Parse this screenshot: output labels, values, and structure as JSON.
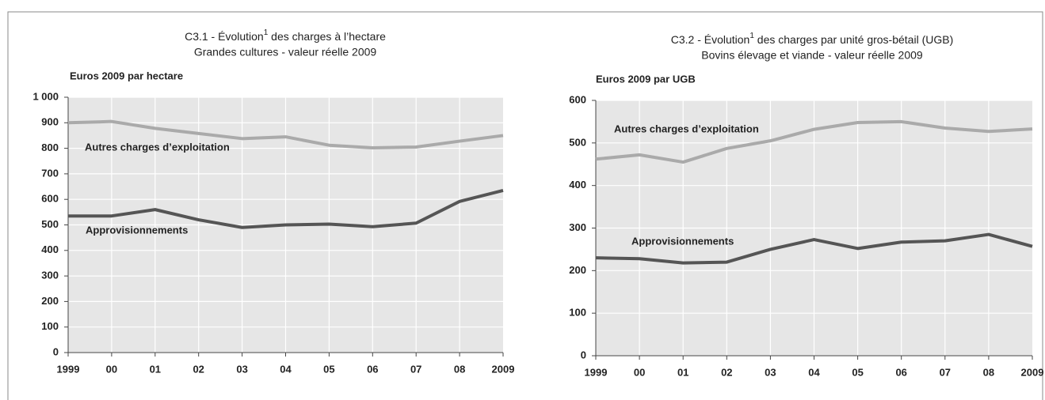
{
  "chart_data": [
    {
      "type": "line",
      "title": {
        "before": "C3.1 -  Évolution",
        "sup": "1",
        "after": " des charges à l’hectare"
      },
      "subtitle": "Grandes cultures - valeur réelle 2009",
      "ylabel": "Euros 2009 par hectare",
      "categories": [
        "1999",
        "00",
        "01",
        "02",
        "03",
        "04",
        "05",
        "06",
        "07",
        "08",
        "2009"
      ],
      "series": [
        {
          "name": "Autres charges d’exploitation",
          "color": "#aaaaaa",
          "values": [
            900,
            905,
            878,
            858,
            838,
            845,
            812,
            802,
            805,
            828,
            850
          ]
        },
        {
          "name": "Approvisionnements",
          "color": "#555555",
          "values": [
            535,
            535,
            560,
            520,
            490,
            500,
            503,
            493,
            507,
            592,
            635
          ]
        }
      ],
      "ylim": [
        0,
        1000
      ],
      "yticks": [
        0,
        100,
        200,
        300,
        400,
        500,
        600,
        700,
        800,
        900,
        {
          "value": 1000,
          "label": "1 000"
        }
      ],
      "grid": true
    },
    {
      "type": "line",
      "title": {
        "before": "C3.2 -  Évolution",
        "sup": "1",
        "after": " des charges par unité gros-bétail (UGB)"
      },
      "subtitle": "Bovins élevage et viande - valeur réelle 2009",
      "ylabel": "Euros 2009 par UGB",
      "categories": [
        "1999",
        "00",
        "01",
        "02",
        "03",
        "04",
        "05",
        "06",
        "07",
        "08",
        "2009"
      ],
      "series": [
        {
          "name": "Autres charges d’exploitation",
          "color": "#aaaaaa",
          "values": [
            462,
            472,
            455,
            487,
            505,
            532,
            548,
            550,
            535,
            527,
            533
          ]
        },
        {
          "name": "Approvisionnements",
          "color": "#555555",
          "values": [
            230,
            228,
            218,
            220,
            250,
            273,
            252,
            267,
            270,
            285,
            257
          ]
        }
      ],
      "ylim": [
        0,
        600
      ],
      "yticks": [
        0,
        100,
        200,
        300,
        400,
        500,
        600
      ],
      "grid": true
    }
  ]
}
